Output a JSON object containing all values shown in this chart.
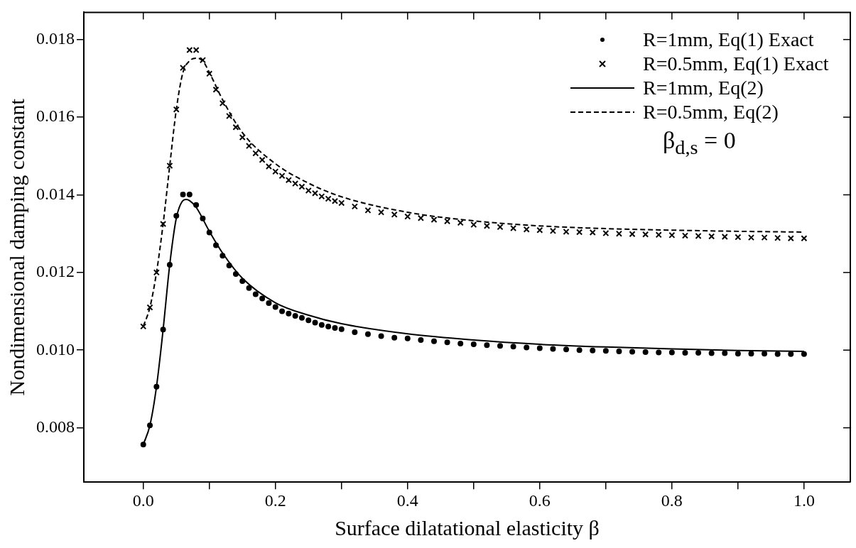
{
  "chart_data": {
    "type": "line",
    "xlabel": "Surface dilatational elasticity β",
    "ylabel": "Nondimensional damping constant",
    "xlim": [
      -0.09,
      1.07
    ],
    "xticks": [
      {
        "value": 0,
        "label": "0.0"
      },
      {
        "value": 0.1,
        "label": null
      },
      {
        "value": 0.2,
        "label": "0.2"
      },
      {
        "value": 0.3,
        "label": null
      },
      {
        "value": 0.4,
        "label": "0.4"
      },
      {
        "value": 0.5,
        "label": null
      },
      {
        "value": 0.6,
        "label": "0.6"
      },
      {
        "value": 0.7,
        "label": null
      },
      {
        "value": 0.8,
        "label": "0.8"
      },
      {
        "value": 0.9,
        "label": null
      },
      {
        "value": 1,
        "label": "1.0"
      }
    ],
    "ylim": [
      0.0066,
      0.0187
    ],
    "yticks": [
      {
        "value": 0.008,
        "label": "0.008"
      },
      {
        "value": 0.01,
        "label": "0.010"
      },
      {
        "value": 0.012,
        "label": "0.012"
      },
      {
        "value": 0.014,
        "label": "0.014"
      },
      {
        "value": 0.016,
        "label": "0.016"
      },
      {
        "value": 0.018,
        "label": "0.018"
      }
    ],
    "grid": false,
    "legend": "top right",
    "annotations": [
      "β$_{d,s}$ = 0"
    ],
    "series": [
      {
        "name": "R=1mm, Eq(1) Exact",
        "type": "scatter",
        "marker": "circle",
        "color": "#000000",
        "x": [
          0,
          0.01,
          0.02,
          0.03,
          0.04,
          0.05,
          0.06,
          0.07,
          0.08,
          0.09,
          0.1,
          0.11,
          0.12,
          0.13,
          0.14,
          0.15,
          0.16,
          0.17,
          0.18,
          0.19,
          0.2,
          0.21,
          0.22,
          0.23,
          0.24,
          0.25,
          0.26,
          0.27,
          0.28,
          0.29,
          0.3,
          0.32,
          0.34,
          0.36,
          0.38,
          0.4,
          0.42,
          0.44,
          0.46,
          0.48,
          0.5,
          0.52,
          0.54,
          0.56,
          0.58,
          0.6,
          0.62,
          0.64,
          0.66,
          0.68,
          0.7,
          0.72,
          0.74,
          0.76,
          0.78,
          0.8,
          0.82,
          0.84,
          0.86,
          0.88,
          0.9,
          0.92,
          0.94,
          0.96,
          0.98,
          1
        ],
        "values": [
          0.00757,
          0.00806,
          0.00906,
          0.01053,
          0.0122,
          0.01346,
          0.01401,
          0.01401,
          0.01374,
          0.01339,
          0.01303,
          0.0127,
          0.01243,
          0.01218,
          0.01196,
          0.01178,
          0.0116,
          0.01144,
          0.01133,
          0.01121,
          0.01111,
          0.011,
          0.01094,
          0.01088,
          0.01083,
          0.01077,
          0.01071,
          0.01065,
          0.01061,
          0.01057,
          0.01054,
          0.01046,
          0.01041,
          0.01036,
          0.01032,
          0.0103,
          0.01026,
          0.01023,
          0.0102,
          0.01017,
          0.01015,
          0.01013,
          0.01011,
          0.01009,
          0.01007,
          0.01005,
          0.01003,
          0.01002,
          0.01,
          0.00999,
          0.00998,
          0.00997,
          0.00996,
          0.00995,
          0.00994,
          0.00994,
          0.00993,
          0.00993,
          0.00992,
          0.00992,
          0.00991,
          0.00991,
          0.00991,
          0.0099,
          0.0099,
          0.0099
        ]
      },
      {
        "name": "R=0.5mm, Eq(1) Exact",
        "type": "scatter",
        "marker": "cross",
        "color": "#000000",
        "x": [
          0,
          0.01,
          0.02,
          0.03,
          0.04,
          0.05,
          0.06,
          0.07,
          0.08,
          0.09,
          0.1,
          0.11,
          0.12,
          0.13,
          0.14,
          0.15,
          0.16,
          0.17,
          0.18,
          0.19,
          0.2,
          0.21,
          0.22,
          0.23,
          0.24,
          0.25,
          0.26,
          0.27,
          0.28,
          0.29,
          0.3,
          0.32,
          0.34,
          0.36,
          0.38,
          0.4,
          0.42,
          0.44,
          0.46,
          0.48,
          0.5,
          0.52,
          0.54,
          0.56,
          0.58,
          0.6,
          0.62,
          0.64,
          0.66,
          0.68,
          0.7,
          0.72,
          0.74,
          0.76,
          0.78,
          0.8,
          0.82,
          0.84,
          0.86,
          0.88,
          0.9,
          0.92,
          0.94,
          0.96,
          0.98,
          1
        ],
        "values": [
          0.01061,
          0.0111,
          0.012,
          0.01325,
          0.01475,
          0.0162,
          0.01727,
          0.01773,
          0.01773,
          0.01747,
          0.01712,
          0.01671,
          0.01636,
          0.01603,
          0.01574,
          0.01548,
          0.01526,
          0.01507,
          0.0149,
          0.01473,
          0.0146,
          0.01449,
          0.01438,
          0.01429,
          0.01421,
          0.01411,
          0.01404,
          0.01396,
          0.0139,
          0.01384,
          0.01379,
          0.0137,
          0.0136,
          0.01355,
          0.01349,
          0.01344,
          0.0134,
          0.01336,
          0.01332,
          0.01328,
          0.01323,
          0.0132,
          0.01317,
          0.01314,
          0.01311,
          0.01309,
          0.01307,
          0.01305,
          0.01304,
          0.01303,
          0.01301,
          0.013,
          0.01299,
          0.01298,
          0.01297,
          0.01296,
          0.01295,
          0.01294,
          0.01293,
          0.01292,
          0.01291,
          0.0129,
          0.0129,
          0.01289,
          0.01288,
          0.01288
        ]
      },
      {
        "name": "R=1mm, Eq(2)",
        "type": "line",
        "line_style": "solid",
        "color": "#000000",
        "x": [
          0,
          0.01,
          0.02,
          0.03,
          0.04,
          0.05,
          0.06,
          0.065,
          0.07,
          0.08,
          0.1,
          0.12,
          0.15,
          0.2,
          0.25,
          0.3,
          0.4,
          0.5,
          0.6,
          0.7,
          0.8,
          0.9,
          1
        ],
        "values": [
          0.00757,
          0.00806,
          0.00906,
          0.01053,
          0.0122,
          0.0134,
          0.01385,
          0.01388,
          0.01385,
          0.01368,
          0.01306,
          0.0125,
          0.01185,
          0.01122,
          0.0109,
          0.01068,
          0.01042,
          0.01026,
          0.01015,
          0.01008,
          0.01003,
          0.00999,
          0.00997
        ]
      },
      {
        "name": "R=0.5mm, Eq(2)",
        "type": "line",
        "line_style": "dashed",
        "color": "#000000",
        "x": [
          0,
          0.01,
          0.02,
          0.03,
          0.04,
          0.05,
          0.06,
          0.07,
          0.08,
          0.09,
          0.1,
          0.12,
          0.15,
          0.2,
          0.25,
          0.3,
          0.4,
          0.5,
          0.6,
          0.7,
          0.8,
          0.9,
          1
        ],
        "values": [
          0.01061,
          0.0111,
          0.012,
          0.01325,
          0.01475,
          0.0162,
          0.01715,
          0.01745,
          0.01752,
          0.01745,
          0.01715,
          0.01645,
          0.0156,
          0.0148,
          0.0143,
          0.01395,
          0.01355,
          0.01333,
          0.0132,
          0.01313,
          0.01309,
          0.01306,
          0.01304
        ]
      }
    ]
  }
}
